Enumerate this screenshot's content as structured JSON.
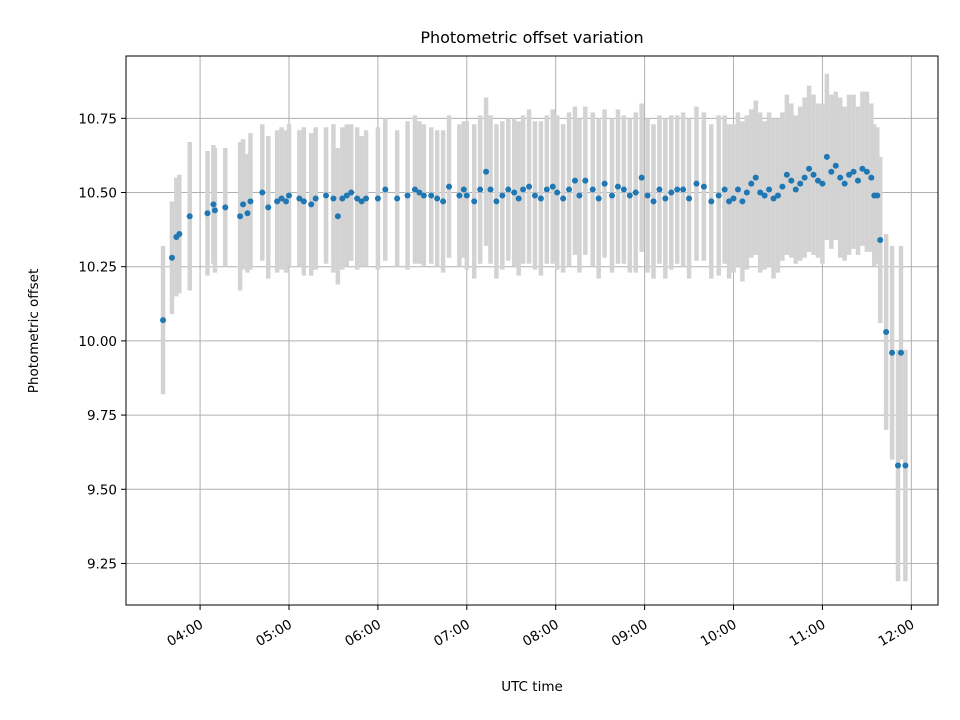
{
  "chart_data": {
    "type": "scatter",
    "title": "Photometric offset variation",
    "xlabel": "UTC time",
    "ylabel": "Photometric offset",
    "xlim": [
      "03:10",
      "12:18"
    ],
    "ylim": [
      9.11,
      10.96
    ],
    "x_ticks": [
      "04:00",
      "05:00",
      "06:00",
      "07:00",
      "08:00",
      "09:00",
      "10:00",
      "11:00",
      "12:00"
    ],
    "y_ticks": [
      9.25,
      9.5,
      9.75,
      10.0,
      10.25,
      10.5,
      10.75
    ],
    "grid": true,
    "colors": {
      "points": "#1f77b4",
      "errorbars": "#d3d3d3",
      "grid": "#b0b0b0"
    },
    "series": [
      {
        "x": [
          "03:35",
          "03:41",
          "03:44",
          "03:46",
          "03:53",
          "04:05",
          "04:09",
          "04:10",
          "04:17",
          "04:27",
          "04:29",
          "04:32",
          "04:34",
          "04:42",
          "04:46",
          "04:52",
          "04:55",
          "04:58",
          "05:00",
          "05:07",
          "05:10",
          "05:15",
          "05:18",
          "05:25",
          "05:30",
          "05:33",
          "05:36",
          "05:39",
          "05:42",
          "05:46",
          "05:49",
          "05:52",
          "06:00",
          "06:05",
          "06:13",
          "06:20",
          "06:25",
          "06:28",
          "06:31",
          "06:36",
          "06:40",
          "06:44",
          "06:48",
          "06:55",
          "06:58",
          "07:00",
          "07:05",
          "07:09",
          "07:13",
          "07:16",
          "07:20",
          "07:24",
          "07:28",
          "07:32",
          "07:35",
          "07:38",
          "07:42",
          "07:46",
          "07:50",
          "07:54",
          "07:58",
          "08:01",
          "08:05",
          "08:09",
          "08:13",
          "08:16",
          "08:20",
          "08:25",
          "08:29",
          "08:33",
          "08:38",
          "08:42",
          "08:46",
          "08:50",
          "08:54",
          "08:58",
          "09:02",
          "09:06",
          "09:10",
          "09:14",
          "09:18",
          "09:22",
          "09:26",
          "09:30",
          "09:35",
          "09:40",
          "09:45",
          "09:50",
          "09:54",
          "09:57",
          "10:00",
          "10:03",
          "10:06",
          "10:09",
          "10:12",
          "10:15",
          "10:18",
          "10:21",
          "10:24",
          "10:27",
          "10:30",
          "10:33",
          "10:36",
          "10:39",
          "10:42",
          "10:45",
          "10:48",
          "10:51",
          "10:54",
          "10:57",
          "11:00",
          "11:03",
          "11:06",
          "11:09",
          "11:12",
          "11:15",
          "11:18",
          "11:21",
          "11:24",
          "11:27",
          "11:30",
          "11:33",
          "11:35",
          "11:37",
          "11:39",
          "11:43",
          "11:47",
          "11:51",
          "11:53",
          "11:56"
        ],
        "y": [
          10.07,
          10.28,
          10.35,
          10.36,
          10.42,
          10.43,
          10.46,
          10.44,
          10.45,
          10.42,
          10.46,
          10.43,
          10.47,
          10.5,
          10.45,
          10.47,
          10.48,
          10.47,
          10.49,
          10.48,
          10.47,
          10.46,
          10.48,
          10.49,
          10.48,
          10.42,
          10.48,
          10.49,
          10.5,
          10.48,
          10.47,
          10.48,
          10.48,
          10.51,
          10.48,
          10.49,
          10.51,
          10.5,
          10.49,
          10.49,
          10.48,
          10.47,
          10.52,
          10.49,
          10.51,
          10.49,
          10.47,
          10.51,
          10.57,
          10.51,
          10.47,
          10.49,
          10.51,
          10.5,
          10.48,
          10.51,
          10.52,
          10.49,
          10.48,
          10.51,
          10.52,
          10.5,
          10.48,
          10.51,
          10.54,
          10.49,
          10.54,
          10.51,
          10.48,
          10.53,
          10.49,
          10.52,
          10.51,
          10.49,
          10.5,
          10.55,
          10.49,
          10.47,
          10.51,
          10.48,
          10.5,
          10.51,
          10.51,
          10.48,
          10.53,
          10.52,
          10.47,
          10.49,
          10.51,
          10.47,
          10.48,
          10.51,
          10.47,
          10.5,
          10.53,
          10.55,
          10.5,
          10.49,
          10.51,
          10.48,
          10.49,
          10.52,
          10.56,
          10.54,
          10.51,
          10.53,
          10.55,
          10.58,
          10.56,
          10.54,
          10.53,
          10.62,
          10.57,
          10.59,
          10.55,
          10.53,
          10.56,
          10.57,
          10.54,
          10.58,
          10.57,
          10.55,
          10.49,
          10.49,
          10.34,
          10.03,
          9.96,
          9.58,
          9.96,
          9.58
        ],
        "err": [
          0.25,
          0.19,
          0.2,
          0.2,
          0.25,
          0.21,
          0.2,
          0.21,
          0.2,
          0.25,
          0.22,
          0.2,
          0.23,
          0.23,
          0.24,
          0.24,
          0.24,
          0.24,
          0.24,
          0.23,
          0.25,
          0.24,
          0.24,
          0.23,
          0.25,
          0.23,
          0.24,
          0.24,
          0.23,
          0.24,
          0.22,
          0.23,
          0.24,
          0.24,
          0.23,
          0.25,
          0.25,
          0.24,
          0.24,
          0.23,
          0.23,
          0.24,
          0.24,
          0.24,
          0.23,
          0.25,
          0.26,
          0.25,
          0.25,
          0.25,
          0.26,
          0.25,
          0.24,
          0.25,
          0.26,
          0.25,
          0.26,
          0.25,
          0.26,
          0.25,
          0.26,
          0.26,
          0.25,
          0.26,
          0.25,
          0.26,
          0.25,
          0.26,
          0.27,
          0.25,
          0.26,
          0.26,
          0.25,
          0.26,
          0.27,
          0.25,
          0.26,
          0.26,
          0.25,
          0.27,
          0.26,
          0.25,
          0.26,
          0.27,
          0.26,
          0.25,
          0.26,
          0.27,
          0.25,
          0.26,
          0.25,
          0.26,
          0.27,
          0.26,
          0.25,
          0.26,
          0.27,
          0.25,
          0.26,
          0.27,
          0.26,
          0.25,
          0.27,
          0.26,
          0.25,
          0.26,
          0.27,
          0.28,
          0.27,
          0.26,
          0.27,
          0.28,
          0.26,
          0.25,
          0.27,
          0.26,
          0.27,
          0.26,
          0.25,
          0.26,
          0.27,
          0.25,
          0.24,
          0.23,
          0.28,
          0.33,
          0.36,
          0.39,
          0.36,
          0.39
        ]
      }
    ]
  }
}
